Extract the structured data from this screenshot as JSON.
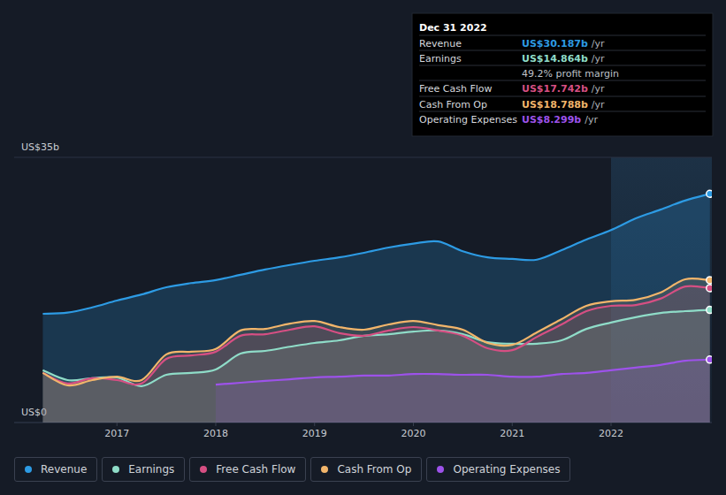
{
  "chart_data": {
    "type": "area",
    "x": [
      2016.25,
      2016.5,
      2016.75,
      2017,
      2017.25,
      2017.5,
      2017.75,
      2018,
      2018.25,
      2018.5,
      2018.75,
      2019,
      2019.25,
      2019.5,
      2019.75,
      2020,
      2020.25,
      2020.5,
      2020.75,
      2021,
      2021.25,
      2021.5,
      2021.75,
      2022,
      2022.25,
      2022.5,
      2022.75,
      2023
    ],
    "xlim": [
      2015.96,
      2023.02
    ],
    "xticks": [
      2017,
      2018,
      2019,
      2020,
      2021,
      2022
    ],
    "ylim": [
      0,
      35
    ],
    "yticks": [
      {
        "value": 0,
        "label": "US$0"
      },
      {
        "value": 35,
        "label": "US$35b"
      }
    ],
    "grid": true,
    "legend": "bottom",
    "series": [
      {
        "name": "Revenue",
        "color": "#2d9be4",
        "values": [
          14.35,
          14.5,
          15.2,
          16.1,
          16.9,
          17.85,
          18.4,
          18.8,
          19.5,
          20.2,
          20.8,
          21.35,
          21.8,
          22.4,
          23.1,
          23.6,
          23.9,
          22.6,
          21.8,
          21.6,
          21.5,
          22.75,
          24.15,
          25.4,
          26.95,
          28.1,
          29.3,
          30.187
        ]
      },
      {
        "name": "Earnings",
        "color": "#8fdcc8",
        "values": [
          6.9,
          5.6,
          5.85,
          5.95,
          4.8,
          6.3,
          6.55,
          7,
          9.1,
          9.45,
          10,
          10.5,
          10.85,
          11.45,
          11.65,
          12,
          12.15,
          11.65,
          10.6,
          10.4,
          10.4,
          10.85,
          12.35,
          13.2,
          13.9,
          14.45,
          14.7,
          14.864
        ]
      },
      {
        "name": "Free Cash Flow",
        "color": "#d64f83",
        "values": [
          6.55,
          5.15,
          5.85,
          5.6,
          5.15,
          8.4,
          8.85,
          9.35,
          11.45,
          11.65,
          12.25,
          12.7,
          11.8,
          11.45,
          12.15,
          12.6,
          12.15,
          11.45,
          9.8,
          9.55,
          11.3,
          12.95,
          14.7,
          15.4,
          15.5,
          16.35,
          17.95,
          17.742
        ]
      },
      {
        "name": "Cash From Op",
        "color": "#f2b56b",
        "values": [
          6.55,
          4.9,
          5.6,
          6.05,
          5.6,
          9,
          9.35,
          9.7,
          12.15,
          12.35,
          13.05,
          13.4,
          12.6,
          12.25,
          12.95,
          13.4,
          12.85,
          12.25,
          10.5,
          10.25,
          11.9,
          13.65,
          15.4,
          16,
          16.2,
          17.15,
          18.9,
          18.788
        ]
      },
      {
        "name": "Operating Expenses",
        "color": "#9d52ea",
        "values": [
          null,
          null,
          null,
          null,
          null,
          null,
          null,
          5,
          5.25,
          5.5,
          5.7,
          5.95,
          6.05,
          6.2,
          6.2,
          6.4,
          6.4,
          6.3,
          6.3,
          6.05,
          6.05,
          6.4,
          6.55,
          6.9,
          7.25,
          7.6,
          8.15,
          8.299
        ]
      }
    ],
    "annotations": {
      "title": "Dec 31 2022",
      "rows": [
        {
          "label": "Revenue",
          "value": "US$30.187b",
          "unit": "/yr"
        },
        {
          "label": "Earnings",
          "value": "US$14.864b",
          "unit": "/yr"
        },
        {
          "value": "49.2% profit margin"
        },
        {
          "label": "Free Cash Flow",
          "value": "US$17.742b",
          "unit": "/yr"
        },
        {
          "label": "Cash From Op",
          "value": "US$18.788b",
          "unit": "/yr"
        },
        {
          "label": "Operating Expenses",
          "value": "US$8.299b",
          "unit": "/yr"
        }
      ]
    }
  }
}
